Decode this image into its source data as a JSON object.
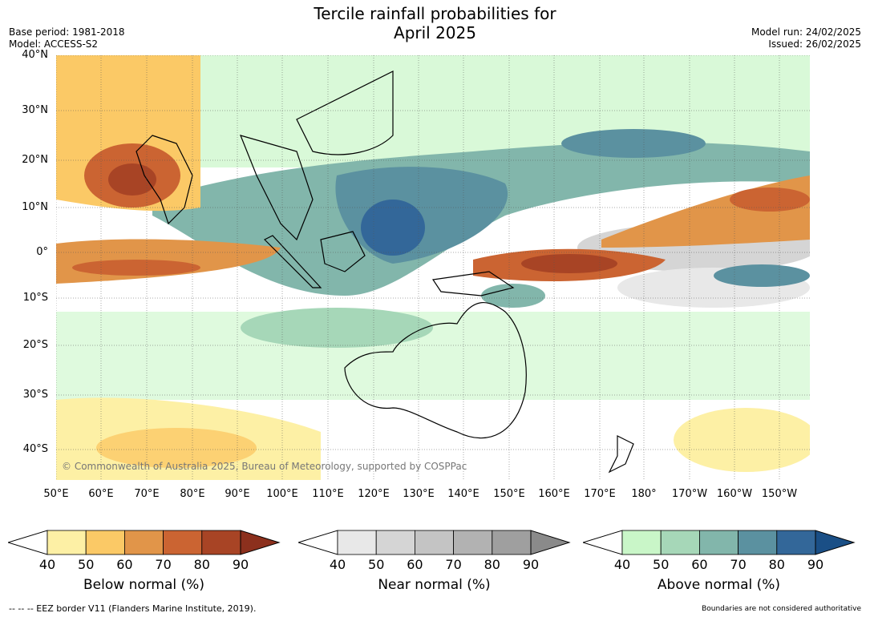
{
  "title": {
    "line1": "Tercile rainfall probabilities for",
    "line2": "April 2025"
  },
  "meta_left": {
    "base_period": "Base period: 1981-2018",
    "model": "Model: ACCESS-S2"
  },
  "meta_right": {
    "model_run": "Model run: 24/02/2025",
    "issued": "Issued: 26/02/2025"
  },
  "map": {
    "lat_labels": [
      "40°N",
      "30°N",
      "20°N",
      "10°N",
      "0°",
      "10°S",
      "20°S",
      "30°S",
      "40°S"
    ],
    "lon_labels": [
      "50°E",
      "60°E",
      "70°E",
      "80°E",
      "90°E",
      "100°E",
      "110°E",
      "120°E",
      "130°E",
      "140°E",
      "150°E",
      "160°E",
      "170°E",
      "180°",
      "170°W",
      "160°W",
      "150°W"
    ],
    "copyright": "© Commonwealth of Australia 2025, Bureau of Meteorology, supported by COSPPac"
  },
  "legends": [
    {
      "title": "Below normal (%)",
      "ticks": [
        "40",
        "50",
        "60",
        "70",
        "80",
        "90"
      ],
      "colors": [
        "#fdf0a5",
        "#fbc966",
        "#e19549",
        "#cb6432",
        "#a84425",
        "#8c301d"
      ]
    },
    {
      "title": "Near normal (%)",
      "ticks": [
        "40",
        "50",
        "60",
        "70",
        "80",
        "90"
      ],
      "colors": [
        "#e8e8e8",
        "#d5d5d5",
        "#c4c4c4",
        "#b2b2b2",
        "#9f9f9f",
        "#8a8a8a"
      ]
    },
    {
      "title": "Above normal (%)",
      "ticks": [
        "40",
        "50",
        "60",
        "70",
        "80",
        "90"
      ],
      "colors": [
        "#c9f6c8",
        "#a6d7b8",
        "#82b6ab",
        "#5b91a0",
        "#336799",
        "#1a4f86"
      ]
    }
  ],
  "footer": {
    "left": "--  --  -- EEZ border V11 (Flanders Marine Institute, 2019).",
    "right": "Boundaries are not considered authoritative"
  }
}
